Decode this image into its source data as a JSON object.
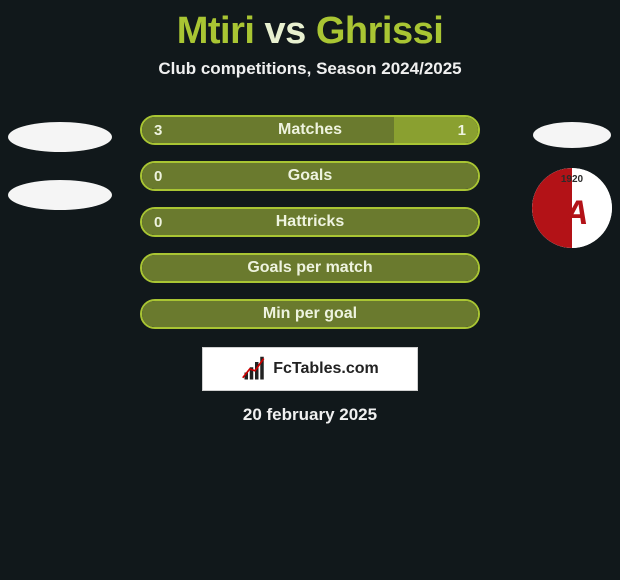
{
  "title": {
    "player1": "Mtiri",
    "vs": "vs",
    "player2": "Ghrissi"
  },
  "subtitle": "Club competitions, Season 2024/2025",
  "colors": {
    "background": "#11181b",
    "accent": "#a9c533",
    "bar_fill_left": "#6a7a2e",
    "bar_fill_right": "#8aa030",
    "text_light": "#eef3df",
    "white": "#ffffff",
    "club_red": "#b31217"
  },
  "rows": [
    {
      "label": "Matches",
      "left_value": "3",
      "right_value": "1",
      "left_pct": 75,
      "right_pct": 25
    },
    {
      "label": "Goals",
      "left_value": "0",
      "right_value": "",
      "left_pct": 100,
      "right_pct": 0
    },
    {
      "label": "Hattricks",
      "left_value": "0",
      "right_value": "",
      "left_pct": 100,
      "right_pct": 0
    },
    {
      "label": "Goals per match",
      "left_value": "",
      "right_value": "",
      "left_pct": 100,
      "right_pct": 0
    },
    {
      "label": "Min per goal",
      "left_value": "",
      "right_value": "",
      "left_pct": 100,
      "right_pct": 0
    }
  ],
  "footer_brand": "FcTables.com",
  "date": "20 february 2025",
  "club_logo": {
    "year": "1920",
    "letter": "A"
  }
}
